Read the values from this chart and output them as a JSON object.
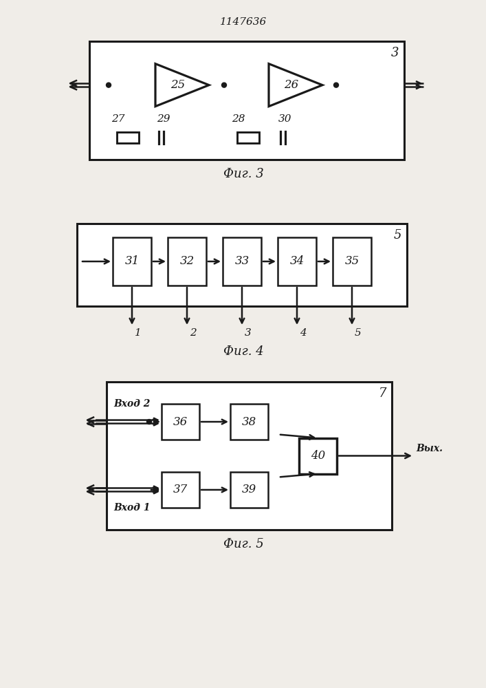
{
  "title": "1147636",
  "fig3_label": "3",
  "fig4_label": "5",
  "fig5_label": "7",
  "caption3": "Фиг. 3",
  "caption4": "Фиг. 4",
  "caption5": "Фиг. 5",
  "bg_color": "#f0ede8",
  "line_color": "#1a1a1a",
  "box_color": "#ffffff"
}
